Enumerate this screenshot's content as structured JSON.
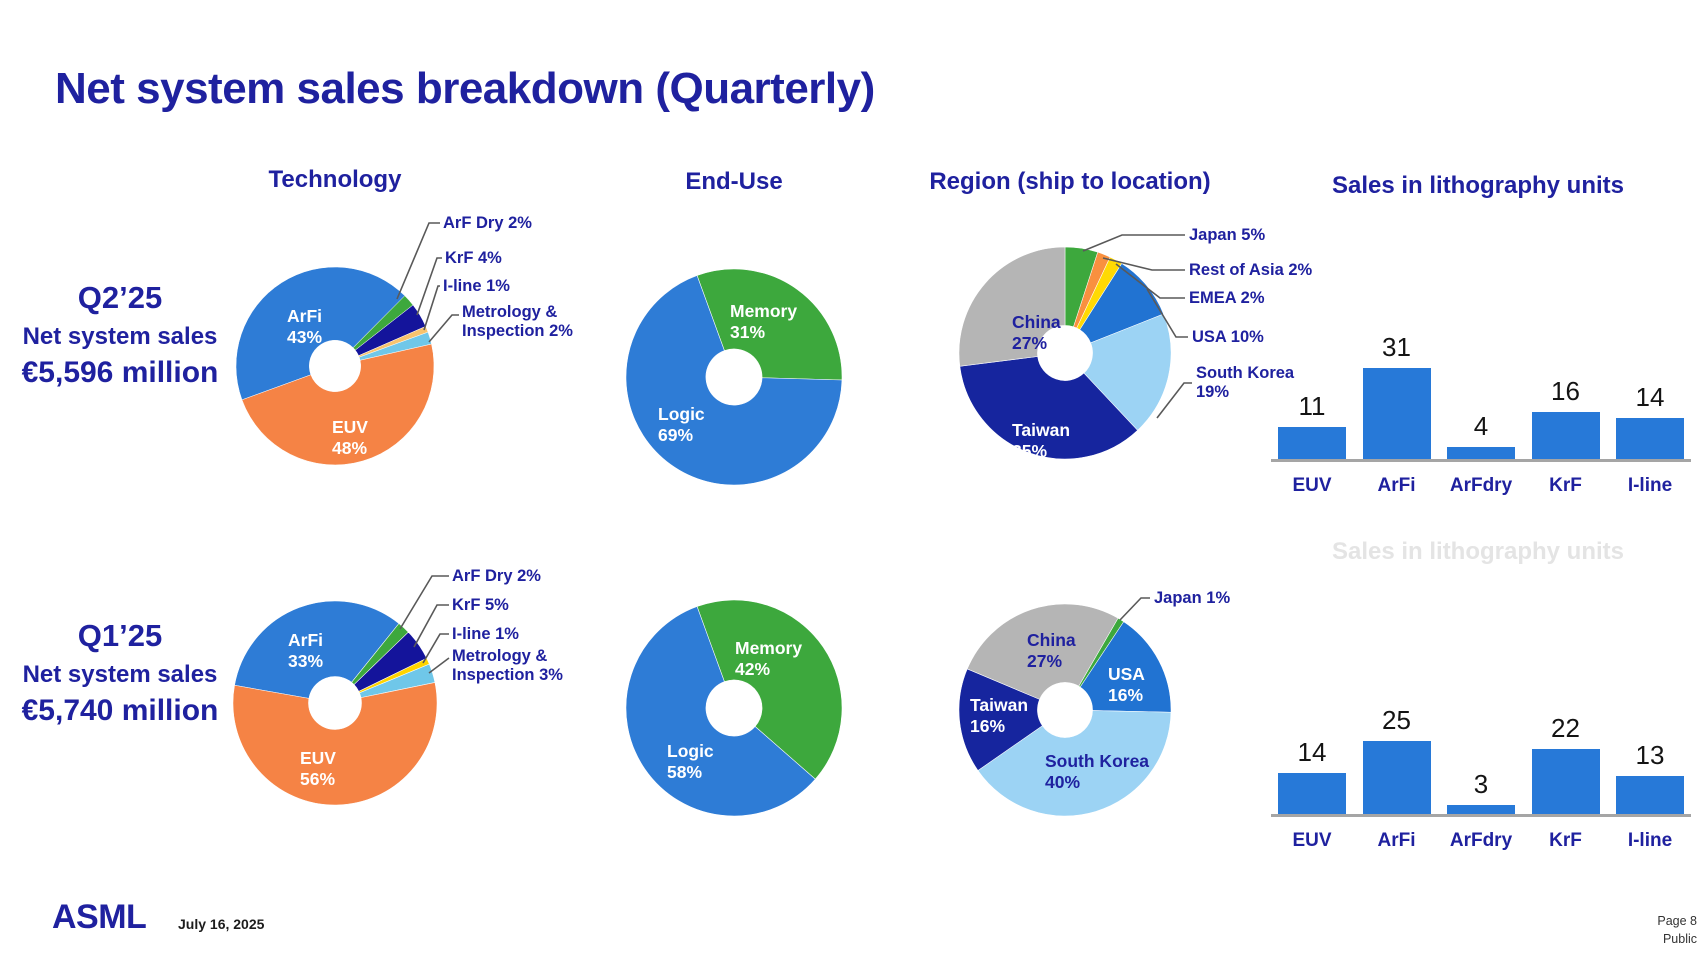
{
  "page": {
    "title": "Net system sales breakdown (Quarterly)",
    "logo": "ASML",
    "date": "July 16, 2025",
    "page_number": "Page 8",
    "classification": "Public"
  },
  "headers": {
    "technology": "Technology",
    "end_use": "End-Use",
    "region": "Region (ship to location)"
  },
  "quarters": [
    {
      "label": "Q2’25",
      "subtitle": "Net system sales",
      "amount": "€5,596 million"
    },
    {
      "label": "Q1’25",
      "subtitle": "Net system sales",
      "amount": "€5,740 million"
    }
  ],
  "colors": {
    "navy_text": "#1F219F",
    "bar_blue": "#2779D8",
    "axis_gray": "#A5A5A5",
    "leader_gray": "#595959"
  },
  "chart_data": [
    {
      "id": "q2-technology",
      "type": "pie",
      "title": "Technology",
      "quarter": "Q2’25",
      "start_angle": 250,
      "slices": [
        {
          "label": "ArFi",
          "value": 43,
          "pct": "43%",
          "color": "#2E7CD6"
        },
        {
          "label": "ArF Dry",
          "value": 2,
          "pct": "2%",
          "color": "#3DA83D",
          "callout": "ArF Dry 2%"
        },
        {
          "label": "KrF",
          "value": 4,
          "pct": "4%",
          "color": "#14149B",
          "callout": "KrF 4%"
        },
        {
          "label": "I-line",
          "value": 1,
          "pct": "1%",
          "color": "#F7C36E",
          "callout": "I-line 1%"
        },
        {
          "label": "Metrology & Inspection",
          "value": 2,
          "pct": "2%",
          "color": "#6FC7E9",
          "callout": "Metrology & Inspection 2%"
        },
        {
          "label": "EUV",
          "value": 48,
          "pct": "48%",
          "color": "#F58345"
        }
      ]
    },
    {
      "id": "q2-end-use",
      "type": "pie",
      "title": "End-Use",
      "quarter": "Q2’25",
      "start_angle": 340,
      "slices": [
        {
          "label": "Memory",
          "value": 31,
          "pct": "31%",
          "color": "#3DA83D"
        },
        {
          "label": "Logic",
          "value": 69,
          "pct": "69%",
          "color": "#2E7CD6"
        }
      ]
    },
    {
      "id": "q2-region",
      "type": "pie",
      "title": "Region (ship to location)",
      "quarter": "Q2’25",
      "start_angle": 0,
      "slices": [
        {
          "label": "Japan",
          "value": 5,
          "pct": "5%",
          "color": "#3DA83D",
          "callout": "Japan 5%"
        },
        {
          "label": "Rest of Asia",
          "value": 2,
          "pct": "2%",
          "color": "#F9903F",
          "callout": "Rest of Asia 2%"
        },
        {
          "label": "EMEA",
          "value": 2,
          "pct": "2%",
          "color": "#FFD903",
          "callout": "EMEA 2%"
        },
        {
          "label": "USA",
          "value": 10,
          "pct": "10%",
          "color": "#2173D2",
          "callout": "USA 10%"
        },
        {
          "label": "South Korea",
          "value": 19,
          "pct": "19%",
          "color": "#9CD3F4",
          "callout": "South Korea 19%"
        },
        {
          "label": "Taiwan",
          "value": 35,
          "pct": "35%",
          "color": "#16259E"
        },
        {
          "label": "China",
          "value": 27,
          "pct": "27%",
          "color": "#B5B5B5"
        }
      ]
    },
    {
      "id": "q2-litho-units",
      "type": "bar",
      "title": "Sales in lithography units",
      "quarter": "Q2’25",
      "categories": [
        "EUV",
        "ArFi",
        "ArFdry",
        "KrF",
        "I-line"
      ],
      "values": [
        11,
        31,
        4,
        16,
        14
      ],
      "bar_color": "#2779D8",
      "ylim": [
        0,
        35
      ],
      "grid": false
    },
    {
      "id": "q1-technology",
      "type": "pie",
      "title": "Technology",
      "quarter": "Q1’25",
      "start_angle": 280,
      "slices": [
        {
          "label": "ArFi",
          "value": 33,
          "pct": "33%",
          "color": "#2E7CD6"
        },
        {
          "label": "ArF Dry",
          "value": 2,
          "pct": "2%",
          "color": "#3DA83D",
          "callout": "ArF Dry 2%"
        },
        {
          "label": "KrF",
          "value": 5,
          "pct": "5%",
          "color": "#14149B",
          "callout": "KrF 5%"
        },
        {
          "label": "I-line",
          "value": 1,
          "pct": "1%",
          "color": "#FFD400",
          "callout": "I-line 1%"
        },
        {
          "label": "Metrology & Inspection",
          "value": 3,
          "pct": "3%",
          "color": "#6FC7E9",
          "callout": "Metrology & Inspection 3%"
        },
        {
          "label": "EUV",
          "value": 56,
          "pct": "56%",
          "color": "#F58345"
        }
      ]
    },
    {
      "id": "q1-end-use",
      "type": "pie",
      "title": "End-Use",
      "quarter": "Q1’25",
      "start_angle": 340,
      "slices": [
        {
          "label": "Memory",
          "value": 42,
          "pct": "42%",
          "color": "#3DA83D"
        },
        {
          "label": "Logic",
          "value": 58,
          "pct": "58%",
          "color": "#2E7CD6"
        }
      ]
    },
    {
      "id": "q1-region",
      "type": "pie",
      "title": "Region (ship to location)",
      "quarter": "Q1’25",
      "start_angle": 30,
      "slices": [
        {
          "label": "Japan",
          "value": 1,
          "pct": "1%",
          "color": "#3DA83D",
          "callout": "Japan 1%"
        },
        {
          "label": "USA",
          "value": 16,
          "pct": "16%",
          "color": "#2173D2"
        },
        {
          "label": "South Korea",
          "value": 40,
          "pct": "40%",
          "color": "#9CD3F4"
        },
        {
          "label": "Taiwan",
          "value": 16,
          "pct": "16%",
          "color": "#16259E"
        },
        {
          "label": "China",
          "value": 27,
          "pct": "27%",
          "color": "#B5B5B5"
        }
      ]
    },
    {
      "id": "q1-litho-units",
      "type": "bar",
      "title": "Sales in lithography units",
      "quarter": "Q1’25",
      "categories": [
        "EUV",
        "ArFi",
        "ArFdry",
        "KrF",
        "I-line"
      ],
      "values": [
        14,
        25,
        3,
        22,
        13
      ],
      "bar_color": "#2779D8",
      "ylim": [
        0,
        35
      ],
      "grid": false,
      "ghost_title": true
    }
  ]
}
